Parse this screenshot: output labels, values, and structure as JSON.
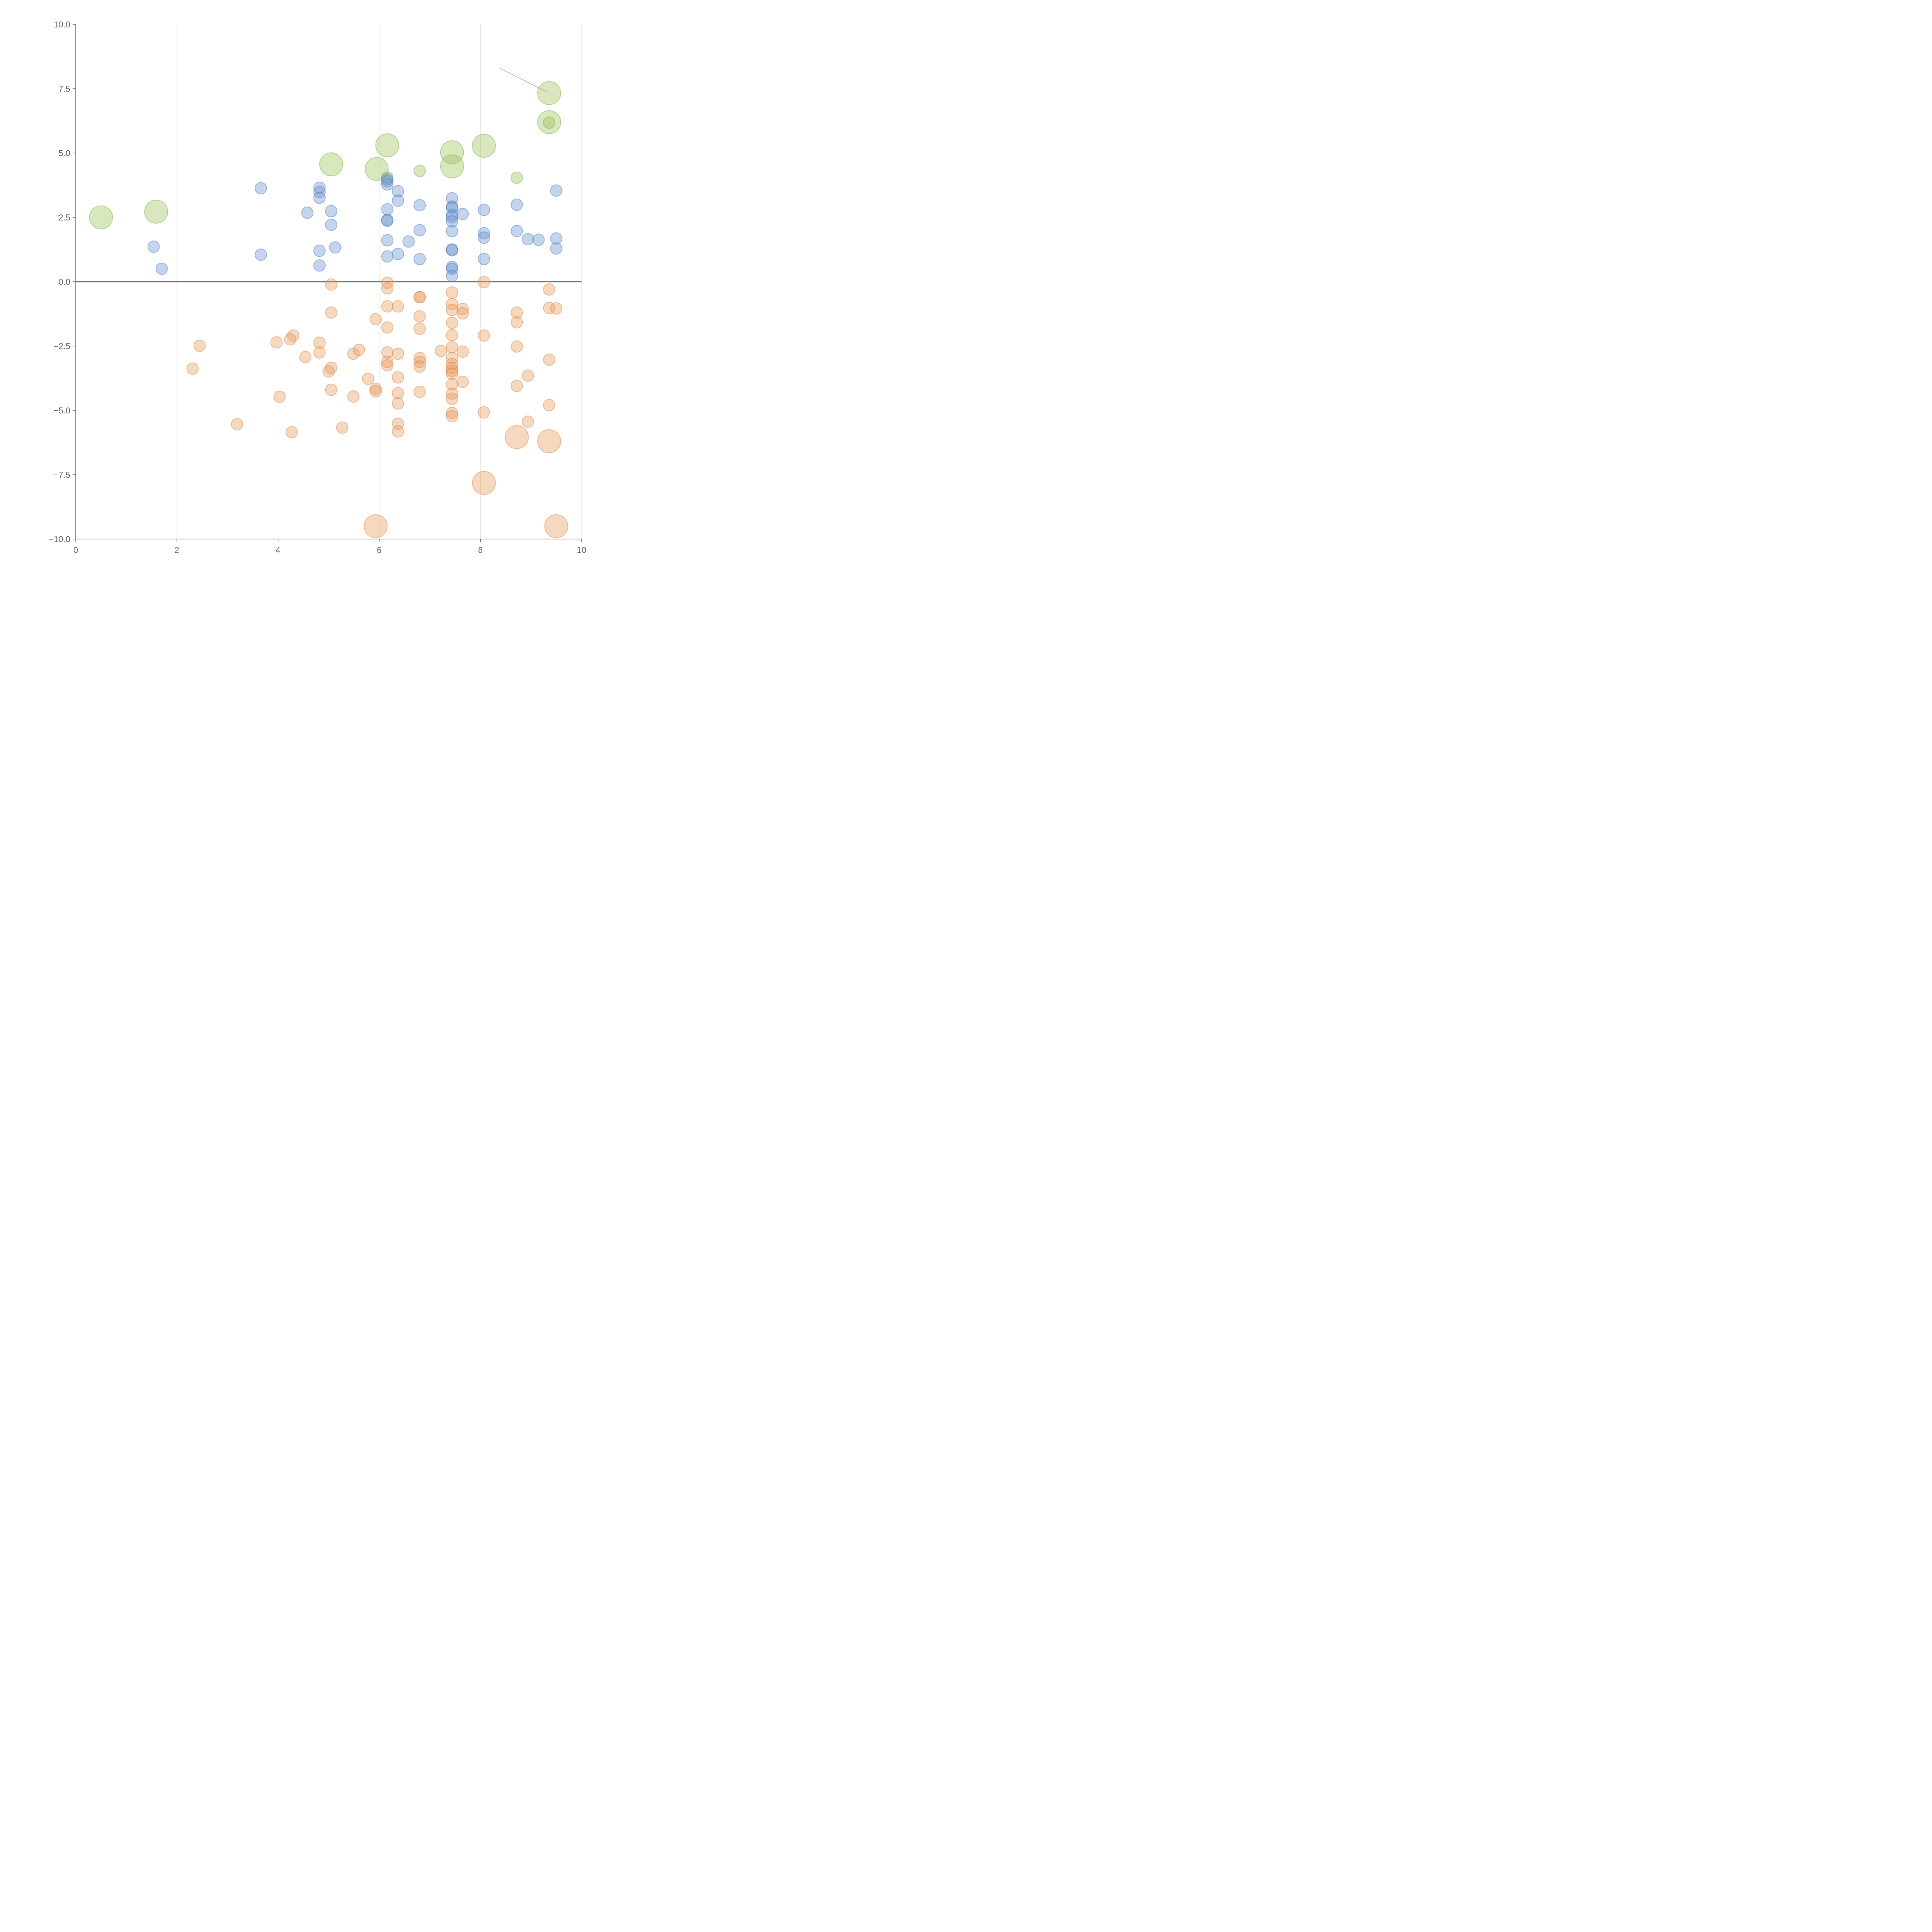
{
  "chart_data": {
    "type": "scatter",
    "title": "",
    "xlabel": "",
    "ylabel": "",
    "xlim": [
      0,
      10
    ],
    "ylim": [
      -10,
      10
    ],
    "x_ticks": [
      0,
      2,
      4,
      6,
      8,
      10
    ],
    "y_ticks": [
      -10,
      -7.5,
      -5,
      -2.5,
      0,
      2.5,
      5,
      7.5,
      10
    ],
    "x_tick_labels": [
      "0",
      "2",
      "4",
      "6",
      "8",
      "10"
    ],
    "y_tick_labels": [
      "−10.0",
      "−7.5",
      "−5.0",
      "−2.5",
      "0.0",
      "2.5",
      "5.0",
      "7.5",
      "10.0"
    ],
    "vertical_grid": true,
    "horizontal_grid": false,
    "zero_line": true,
    "series": [
      {
        "name": "green",
        "fill": "#9dc35a",
        "stroke": "#7fa940",
        "points": [
          {
            "x": 0.5,
            "y": 2.5,
            "size": "large"
          },
          {
            "x": 1.59,
            "y": 2.72,
            "size": "large"
          },
          {
            "x": 5.05,
            "y": 4.56,
            "size": "large"
          },
          {
            "x": 5.95,
            "y": 4.38,
            "size": "large"
          },
          {
            "x": 6.16,
            "y": 5.3,
            "size": "large"
          },
          {
            "x": 6.16,
            "y": 4.05,
            "size": "small"
          },
          {
            "x": 6.8,
            "y": 4.3,
            "size": "small"
          },
          {
            "x": 7.44,
            "y": 5.03,
            "size": "large"
          },
          {
            "x": 7.44,
            "y": 4.48,
            "size": "large"
          },
          {
            "x": 8.07,
            "y": 5.28,
            "size": "large"
          },
          {
            "x": 8.72,
            "y": 4.04,
            "size": "small"
          },
          {
            "x": 9.36,
            "y": 7.33,
            "size": "large"
          },
          {
            "x": 9.36,
            "y": 6.2,
            "size": "large"
          },
          {
            "x": 9.36,
            "y": 6.18,
            "size": "small"
          }
        ]
      },
      {
        "name": "blue",
        "fill": "#6b93cf",
        "stroke": "#4a76bd",
        "points": [
          {
            "x": 1.54,
            "y": 1.36
          },
          {
            "x": 1.7,
            "y": 0.5
          },
          {
            "x": 3.66,
            "y": 3.63
          },
          {
            "x": 3.66,
            "y": 1.05
          },
          {
            "x": 4.58,
            "y": 2.68
          },
          {
            "x": 4.82,
            "y": 3.65
          },
          {
            "x": 4.82,
            "y": 3.48
          },
          {
            "x": 4.82,
            "y": 3.26
          },
          {
            "x": 4.82,
            "y": 1.2
          },
          {
            "x": 4.82,
            "y": 0.63
          },
          {
            "x": 5.05,
            "y": 2.74
          },
          {
            "x": 5.05,
            "y": 2.21
          },
          {
            "x": 5.13,
            "y": 1.33
          },
          {
            "x": 6.16,
            "y": 3.98
          },
          {
            "x": 6.16,
            "y": 3.9
          },
          {
            "x": 6.16,
            "y": 3.78
          },
          {
            "x": 6.16,
            "y": 2.81
          },
          {
            "x": 6.16,
            "y": 2.4
          },
          {
            "x": 6.16,
            "y": 2.37
          },
          {
            "x": 6.16,
            "y": 1.61
          },
          {
            "x": 6.16,
            "y": 0.98
          },
          {
            "x": 6.37,
            "y": 3.52
          },
          {
            "x": 6.37,
            "y": 3.15
          },
          {
            "x": 6.37,
            "y": 1.08
          },
          {
            "x": 6.58,
            "y": 1.56
          },
          {
            "x": 6.8,
            "y": 2.97
          },
          {
            "x": 6.8,
            "y": 2.0
          },
          {
            "x": 6.8,
            "y": 0.88
          },
          {
            "x": 7.44,
            "y": 3.24
          },
          {
            "x": 7.44,
            "y": 2.92
          },
          {
            "x": 7.44,
            "y": 2.88
          },
          {
            "x": 7.44,
            "y": 2.6
          },
          {
            "x": 7.44,
            "y": 2.5
          },
          {
            "x": 7.44,
            "y": 2.34
          },
          {
            "x": 7.44,
            "y": 1.96
          },
          {
            "x": 7.44,
            "y": 1.25
          },
          {
            "x": 7.44,
            "y": 1.22
          },
          {
            "x": 7.44,
            "y": 0.57
          },
          {
            "x": 7.44,
            "y": 0.5
          },
          {
            "x": 7.44,
            "y": 0.23
          },
          {
            "x": 7.65,
            "y": 2.63
          },
          {
            "x": 8.07,
            "y": 2.79
          },
          {
            "x": 8.07,
            "y": 1.88
          },
          {
            "x": 8.07,
            "y": 1.71
          },
          {
            "x": 8.07,
            "y": 0.88
          },
          {
            "x": 8.72,
            "y": 2.99
          },
          {
            "x": 8.72,
            "y": 1.97
          },
          {
            "x": 8.94,
            "y": 1.65
          },
          {
            "x": 9.15,
            "y": 1.63
          },
          {
            "x": 9.5,
            "y": 3.54
          },
          {
            "x": 9.5,
            "y": 1.68
          },
          {
            "x": 9.5,
            "y": 1.29
          }
        ]
      },
      {
        "name": "orange",
        "fill": "#e89e60",
        "stroke": "#d9803f",
        "points": [
          {
            "x": 2.31,
            "y": -3.38,
            "size": "small"
          },
          {
            "x": 2.45,
            "y": -2.49,
            "size": "small"
          },
          {
            "x": 3.19,
            "y": -5.54,
            "size": "small"
          },
          {
            "x": 3.97,
            "y": -2.36,
            "size": "small"
          },
          {
            "x": 4.03,
            "y": -4.47,
            "size": "small"
          },
          {
            "x": 4.24,
            "y": -2.24,
            "size": "small"
          },
          {
            "x": 4.3,
            "y": -2.09,
            "size": "small"
          },
          {
            "x": 4.27,
            "y": -5.85,
            "size": "small"
          },
          {
            "x": 4.54,
            "y": -2.93,
            "size": "small"
          },
          {
            "x": 4.82,
            "y": -2.37,
            "size": "small"
          },
          {
            "x": 4.82,
            "y": -2.75,
            "size": "small"
          },
          {
            "x": 5.05,
            "y": -0.11,
            "size": "small"
          },
          {
            "x": 5.05,
            "y": -1.2,
            "size": "small"
          },
          {
            "x": 5.05,
            "y": -3.35,
            "size": "small"
          },
          {
            "x": 5.0,
            "y": -3.49,
            "size": "small"
          },
          {
            "x": 5.05,
            "y": -4.2,
            "size": "small"
          },
          {
            "x": 5.27,
            "y": -5.67,
            "size": "small"
          },
          {
            "x": 5.49,
            "y": -2.8,
            "size": "small"
          },
          {
            "x": 5.49,
            "y": -4.46,
            "size": "small"
          },
          {
            "x": 5.6,
            "y": -2.65,
            "size": "small"
          },
          {
            "x": 5.78,
            "y": -3.77,
            "size": "small"
          },
          {
            "x": 5.93,
            "y": -1.46,
            "size": "small"
          },
          {
            "x": 5.93,
            "y": -4.16,
            "size": "small"
          },
          {
            "x": 5.93,
            "y": -4.26,
            "size": "small"
          },
          {
            "x": 5.93,
            "y": -9.5,
            "size": "large"
          },
          {
            "x": 6.16,
            "y": -0.04,
            "size": "small"
          },
          {
            "x": 6.16,
            "y": -0.26,
            "size": "small"
          },
          {
            "x": 6.16,
            "y": -0.96,
            "size": "small"
          },
          {
            "x": 6.16,
            "y": -1.78,
            "size": "small"
          },
          {
            "x": 6.16,
            "y": -2.75,
            "size": "small"
          },
          {
            "x": 6.16,
            "y": -3.12,
            "size": "small"
          },
          {
            "x": 6.16,
            "y": -3.25,
            "size": "small"
          },
          {
            "x": 6.37,
            "y": -0.96,
            "size": "small"
          },
          {
            "x": 6.37,
            "y": -2.8,
            "size": "small"
          },
          {
            "x": 6.37,
            "y": -3.72,
            "size": "small"
          },
          {
            "x": 6.37,
            "y": -4.33,
            "size": "small"
          },
          {
            "x": 6.37,
            "y": -4.73,
            "size": "small"
          },
          {
            "x": 6.37,
            "y": -5.52,
            "size": "small"
          },
          {
            "x": 6.37,
            "y": -5.82,
            "size": "small"
          },
          {
            "x": 6.8,
            "y": -0.6,
            "size": "small"
          },
          {
            "x": 6.8,
            "y": -0.6,
            "size": "small"
          },
          {
            "x": 6.8,
            "y": -1.35,
            "size": "small"
          },
          {
            "x": 6.8,
            "y": -1.83,
            "size": "small"
          },
          {
            "x": 6.8,
            "y": -2.97,
            "size": "small"
          },
          {
            "x": 6.8,
            "y": -3.12,
            "size": "small"
          },
          {
            "x": 6.8,
            "y": -3.3,
            "size": "small"
          },
          {
            "x": 6.8,
            "y": -4.28,
            "size": "small"
          },
          {
            "x": 7.22,
            "y": -2.69,
            "size": "small"
          },
          {
            "x": 7.44,
            "y": -0.42,
            "size": "small"
          },
          {
            "x": 7.44,
            "y": -0.87,
            "size": "small"
          },
          {
            "x": 7.44,
            "y": -1.1,
            "size": "small"
          },
          {
            "x": 7.44,
            "y": -1.6,
            "size": "small"
          },
          {
            "x": 7.44,
            "y": -2.08,
            "size": "small"
          },
          {
            "x": 7.44,
            "y": -2.55,
            "size": "small"
          },
          {
            "x": 7.44,
            "y": -2.97,
            "size": "small"
          },
          {
            "x": 7.44,
            "y": -3.2,
            "size": "small"
          },
          {
            "x": 7.44,
            "y": -3.35,
            "size": "small"
          },
          {
            "x": 7.44,
            "y": -3.47,
            "size": "small"
          },
          {
            "x": 7.44,
            "y": -3.58,
            "size": "small"
          },
          {
            "x": 7.44,
            "y": -3.99,
            "size": "small"
          },
          {
            "x": 7.44,
            "y": -4.35,
            "size": "small"
          },
          {
            "x": 7.44,
            "y": -4.55,
            "size": "small"
          },
          {
            "x": 7.44,
            "y": -5.1,
            "size": "small"
          },
          {
            "x": 7.44,
            "y": -5.23,
            "size": "small"
          },
          {
            "x": 7.65,
            "y": -1.06,
            "size": "small"
          },
          {
            "x": 7.65,
            "y": -1.23,
            "size": "small"
          },
          {
            "x": 7.65,
            "y": -2.72,
            "size": "small"
          },
          {
            "x": 7.65,
            "y": -3.89,
            "size": "small"
          },
          {
            "x": 8.07,
            "y": -0.02,
            "size": "small"
          },
          {
            "x": 8.07,
            "y": -2.09,
            "size": "small"
          },
          {
            "x": 8.07,
            "y": -5.08,
            "size": "small"
          },
          {
            "x": 8.07,
            "y": -7.82,
            "size": "large"
          },
          {
            "x": 8.72,
            "y": -1.2,
            "size": "small"
          },
          {
            "x": 8.72,
            "y": -1.58,
            "size": "small"
          },
          {
            "x": 8.72,
            "y": -2.52,
            "size": "small"
          },
          {
            "x": 8.72,
            "y": -4.05,
            "size": "small"
          },
          {
            "x": 8.72,
            "y": -6.04,
            "size": "large"
          },
          {
            "x": 8.94,
            "y": -3.65,
            "size": "small"
          },
          {
            "x": 8.94,
            "y": -5.44,
            "size": "small"
          },
          {
            "x": 9.36,
            "y": -0.3,
            "size": "small"
          },
          {
            "x": 9.36,
            "y": -1.02,
            "size": "small"
          },
          {
            "x": 9.36,
            "y": -3.03,
            "size": "small"
          },
          {
            "x": 9.36,
            "y": -4.8,
            "size": "small"
          },
          {
            "x": 9.36,
            "y": -6.2,
            "size": "large"
          },
          {
            "x": 9.5,
            "y": -1.04,
            "size": "small"
          },
          {
            "x": 9.5,
            "y": -9.5,
            "size": "large"
          }
        ]
      }
    ],
    "annotations": [
      {
        "x1": 8.38,
        "y1": 8.3,
        "x2": 9.33,
        "y2": 7.36,
        "color": "#aaaaaa"
      }
    ]
  }
}
